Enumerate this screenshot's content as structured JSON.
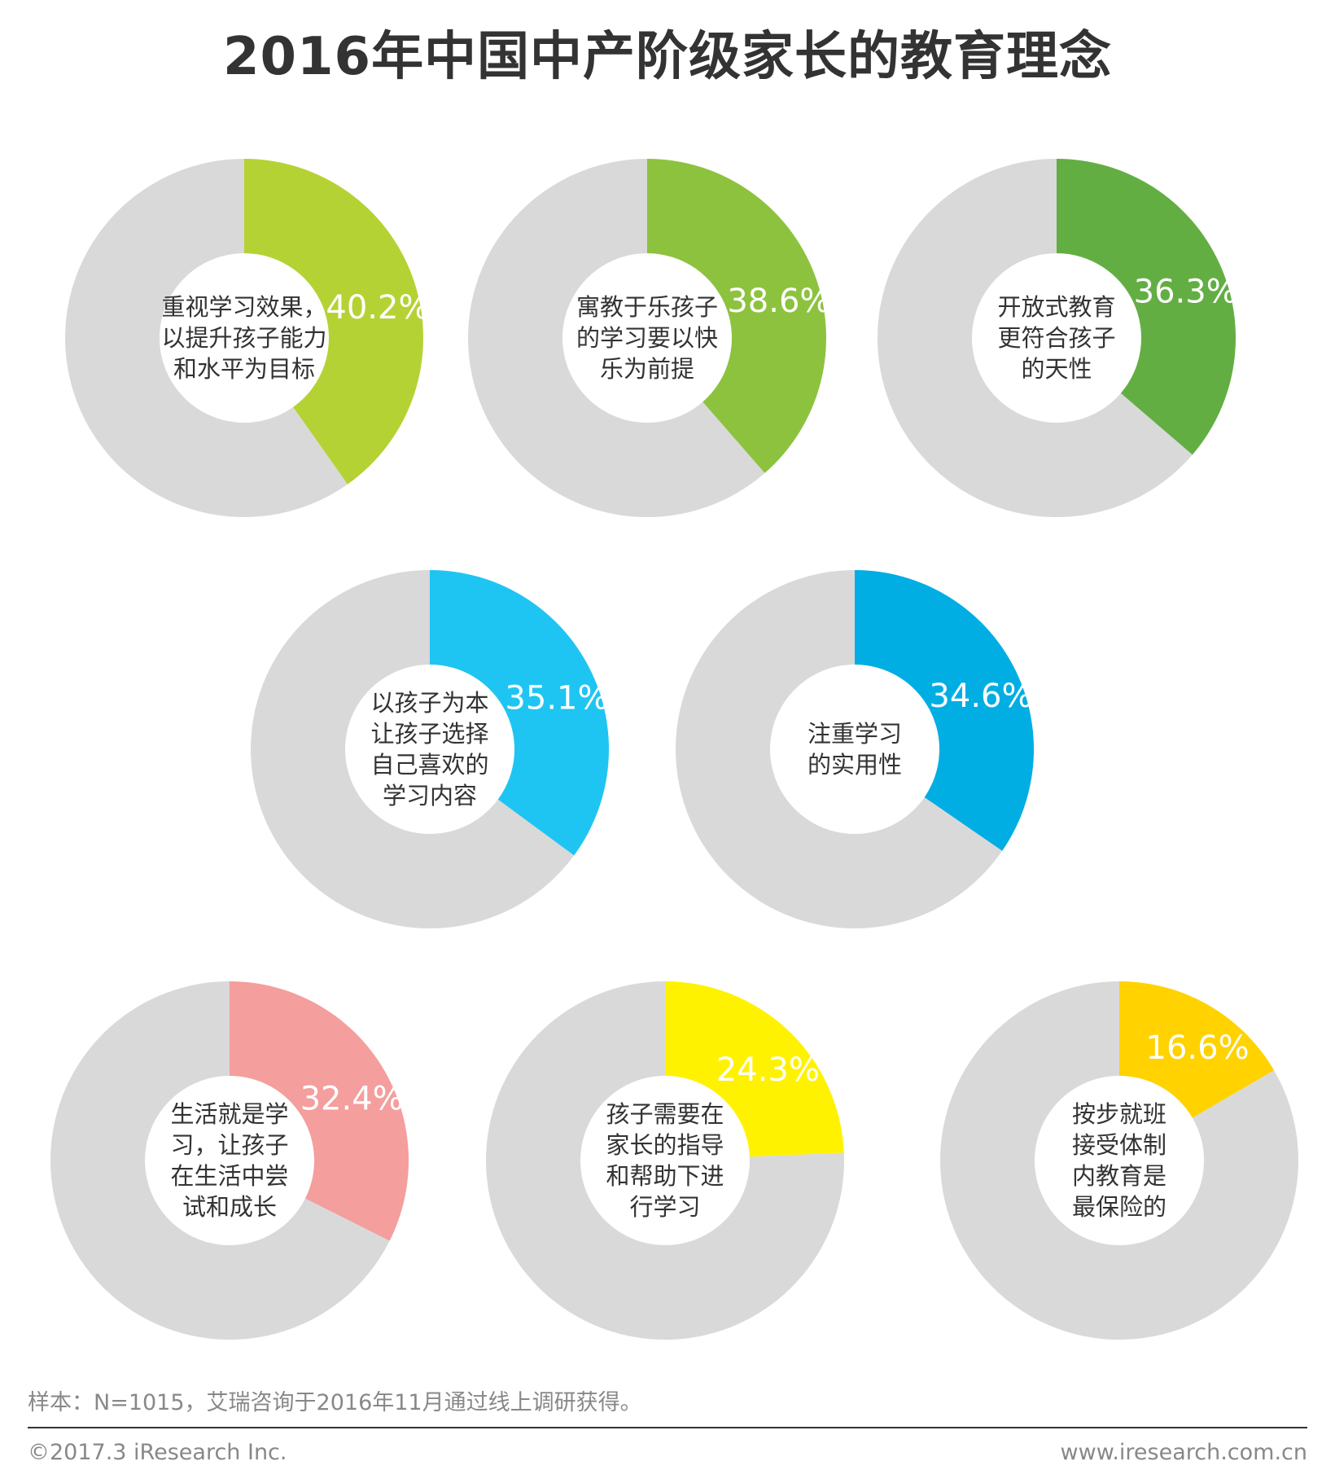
{
  "title": "2016年中国中产阶级家长的教育理念",
  "chart_data": {
    "type": "donut",
    "title": "2016年中国中产阶级家长的教育理念",
    "remainder_color": "#d9d9d9",
    "items": [
      {
        "label_lines": [
          "重视学习效果，",
          "以提升孩子能力",
          "和水平为目标"
        ],
        "value": 40.2,
        "value_text": "40.2%",
        "color": "#b5d234"
      },
      {
        "label_lines": [
          "寓教于乐孩子",
          "的学习要以快",
          "乐为前提"
        ],
        "value": 38.6,
        "value_text": "38.6%",
        "color": "#8dc23f"
      },
      {
        "label_lines": [
          "开放式教育",
          "更符合孩子",
          "的天性"
        ],
        "value": 36.3,
        "value_text": "36.3%",
        "color": "#63ae43"
      },
      {
        "label_lines": [
          "以孩子为本",
          "让孩子选择",
          "自己喜欢的",
          "学习内容"
        ],
        "value": 35.1,
        "value_text": "35.1%",
        "color": "#1fc5f2"
      },
      {
        "label_lines": [
          "注重学习",
          "的实用性"
        ],
        "value": 34.6,
        "value_text": "34.6%",
        "color": "#00aee3"
      },
      {
        "label_lines": [
          "生活就是学",
          "习，让孩子",
          "在生活中尝",
          "试和成长"
        ],
        "value": 32.4,
        "value_text": "32.4%",
        "color": "#f49e9e"
      },
      {
        "label_lines": [
          "孩子需要在",
          "家长的指导",
          "和帮助下进",
          "行学习"
        ],
        "value": 24.3,
        "value_text": "24.3%",
        "color": "#fff200"
      },
      {
        "label_lines": [
          "按步就班",
          "接受体制",
          "内教育是",
          "最保险的"
        ],
        "value": 16.6,
        "value_text": "16.6%",
        "color": "#ffd200"
      }
    ]
  },
  "footer": {
    "note": "样本：N=1015，艾瑞咨询于2016年11月通过线上调研获得。",
    "copyright": "©2017.3  iResearch Inc.",
    "website": "www.iresearch.com.cn"
  }
}
